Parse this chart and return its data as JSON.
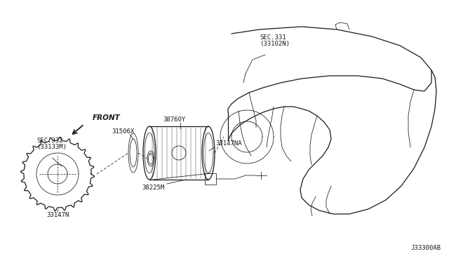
{
  "bg_color": "#ffffff",
  "line_color": "#1a1a1a",
  "labels": {
    "sec331": "SEC.331",
    "sec331_sub": "(33102N)",
    "part38760Y": "38760Y",
    "part31506X": "31506X",
    "part33147NA": "33147NA",
    "part38225M": "38225M",
    "sec332": "SEC.332",
    "sec332_sub": "(33133M)",
    "part33147N": "33147N",
    "front": "FRONT",
    "ref_code": "J33300AB"
  },
  "fontsize_label": 6.5,
  "fontsize_ref": 6.5
}
